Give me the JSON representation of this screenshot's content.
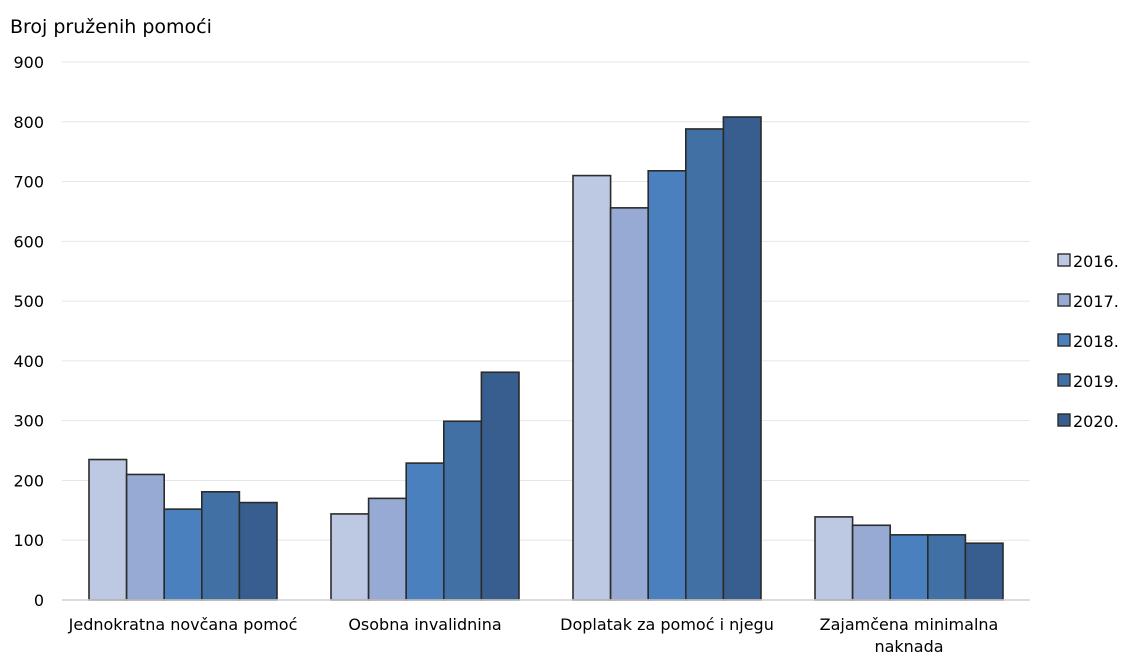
{
  "chart_data": {
    "type": "bar",
    "ylabel": "Broj pruženih pomoći",
    "xlabel": "",
    "ylim": [
      0,
      900
    ],
    "yticks": [
      0,
      100,
      200,
      300,
      400,
      500,
      600,
      700,
      800,
      900
    ],
    "grid": true,
    "legend_position": "right",
    "categories": [
      [
        "Jednokratna novčana pomoć"
      ],
      [
        "Osobna invalidnina"
      ],
      [
        "Doplatak za pomoć i njegu"
      ],
      [
        "Zajamčena minimalna",
        "naknada"
      ]
    ],
    "series": [
      {
        "name": "2016.",
        "color": "#bdc8e2",
        "values": [
          235,
          144,
          710,
          139
        ]
      },
      {
        "name": "2017.",
        "color": "#96aad4",
        "values": [
          210,
          170,
          656,
          125
        ]
      },
      {
        "name": "2018.",
        "color": "#4a80be",
        "values": [
          152,
          229,
          718,
          109
        ]
      },
      {
        "name": "2019.",
        "color": "#4170a5",
        "values": [
          181,
          299,
          788,
          109
        ]
      },
      {
        "name": "2020.",
        "color": "#375e8e",
        "values": [
          163,
          381,
          808,
          95
        ]
      }
    ],
    "grid_color": "#e6e6e6",
    "bar_outline_color": "#2b2b2b"
  }
}
